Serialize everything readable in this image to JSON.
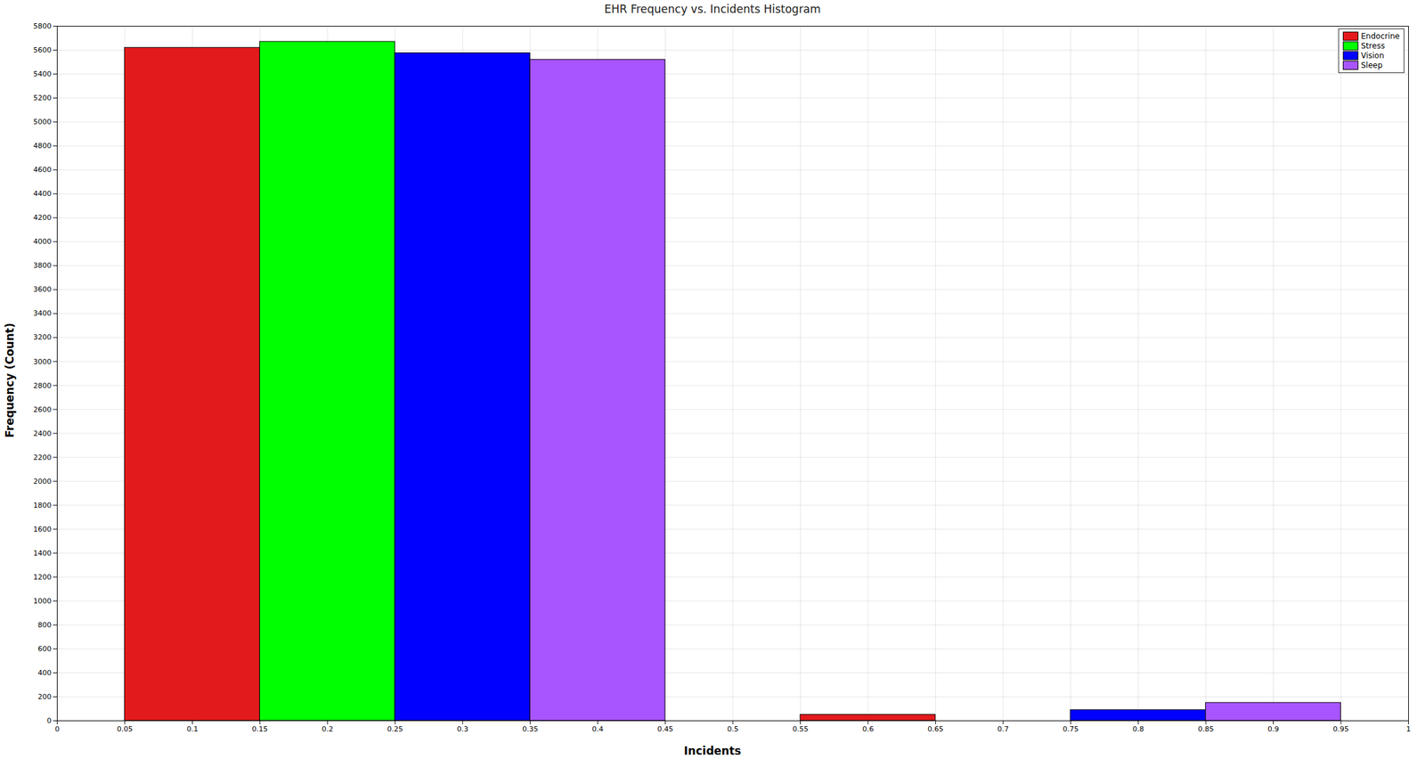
{
  "chart_data": {
    "type": "histogram",
    "title": "EHR Frequency vs. Incidents Histogram",
    "x_label": "Incidents",
    "y_label": "Frequency (Count)",
    "bins": [
      0.05,
      0.15,
      0.25,
      0.35,
      0.45,
      0.55,
      0.65,
      0.75,
      0.85,
      0.95
    ],
    "series": [
      {
        "name": "Endocrine",
        "color": "#e31a1c",
        "values": [
          5620,
          0,
          0,
          0,
          0,
          50,
          0,
          0,
          0
        ]
      },
      {
        "name": "Stress",
        "color": "#00ff00",
        "values": [
          0,
          5670,
          0,
          0,
          0,
          0,
          0,
          0,
          0
        ]
      },
      {
        "name": "Vision",
        "color": "#0000ff",
        "values": [
          0,
          0,
          5575,
          0,
          0,
          0,
          0,
          90,
          0
        ]
      },
      {
        "name": "Sleep",
        "color": "#a855ff",
        "values": [
          0,
          0,
          0,
          5520,
          0,
          0,
          0,
          0,
          150
        ]
      }
    ],
    "xlim": [
      0,
      1
    ],
    "xticks": [
      0,
      0.05,
      0.1,
      0.15,
      0.2,
      0.25,
      0.3,
      0.35,
      0.4,
      0.45,
      0.5,
      0.55,
      0.6,
      0.65,
      0.7,
      0.75,
      0.8,
      0.85,
      0.9,
      0.95,
      1
    ],
    "ylim": [
      0,
      5800
    ],
    "yticks": [
      0,
      200,
      400,
      600,
      800,
      1000,
      1200,
      1400,
      1600,
      1800,
      2000,
      2200,
      2400,
      2600,
      2800,
      3000,
      3200,
      3400,
      3600,
      3800,
      4000,
      4200,
      4400,
      4600,
      4800,
      5000,
      5200,
      5400,
      5600,
      5800
    ],
    "grid": true,
    "legend": "upper right"
  }
}
